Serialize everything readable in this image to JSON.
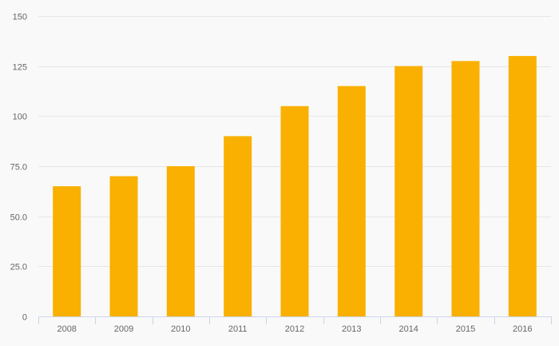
{
  "chart_data": {
    "type": "bar",
    "categories": [
      "2008",
      "2009",
      "2010",
      "2011",
      "2012",
      "2013",
      "2014",
      "2015",
      "2016"
    ],
    "values": [
      65,
      70,
      75,
      90,
      105,
      115,
      125,
      127.5,
      130
    ],
    "y_ticks": [
      0,
      25,
      50,
      75,
      100,
      125,
      150
    ],
    "y_tick_labels": [
      "0",
      "25.0",
      "50.0",
      "75.0",
      "100",
      "125",
      "150"
    ],
    "ylim": [
      0,
      150
    ],
    "grid": true,
    "legend": "none",
    "bar_color": "#f9b000",
    "title": "",
    "xlabel": "",
    "ylabel": ""
  }
}
